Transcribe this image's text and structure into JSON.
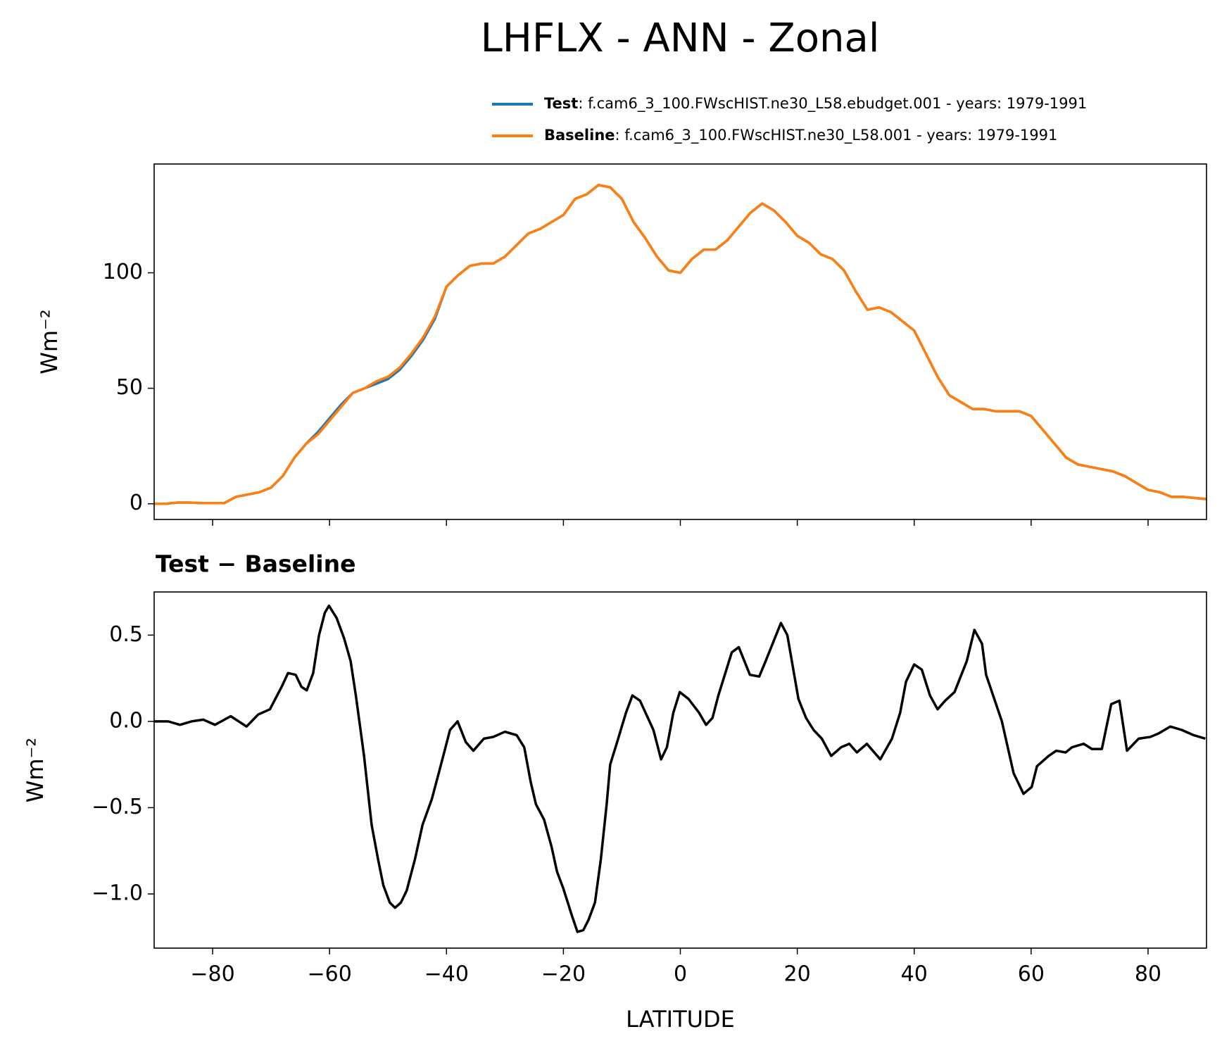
{
  "title": "LHFLX - ANN - Zonal",
  "chart_data": [
    {
      "type": "line",
      "ylabel": "Wm⁻²",
      "xlim": [
        -90,
        90
      ],
      "ylim": [
        -6.8,
        147.1
      ],
      "xticks": [
        -80,
        -60,
        -40,
        -20,
        0,
        20,
        40,
        60,
        80
      ],
      "yticks": [
        0,
        50,
        100
      ],
      "legend": "upper right",
      "x": [
        -90,
        -88,
        -86,
        -84,
        -82,
        -80,
        -78,
        -76,
        -74,
        -72,
        -70,
        -68,
        -66,
        -64,
        -62,
        -60,
        -58,
        -56,
        -54,
        -52,
        -50,
        -48,
        -46,
        -44,
        -42,
        -40,
        -38,
        -36,
        -34,
        -32,
        -30,
        -28,
        -26,
        -24,
        -22,
        -20,
        -18,
        -16,
        -14,
        -12,
        -10,
        -8,
        -6,
        -4,
        -2,
        0,
        2,
        4,
        6,
        8,
        10,
        12,
        14,
        16,
        18,
        20,
        22,
        24,
        26,
        28,
        30,
        32,
        34,
        36,
        38,
        40,
        42,
        44,
        46,
        48,
        50,
        52,
        54,
        56,
        58,
        60,
        62,
        64,
        66,
        68,
        70,
        72,
        74,
        76,
        78,
        80,
        82,
        84,
        86,
        88,
        90
      ],
      "series": [
        {
          "name": "Test",
          "description": ": f.cam6_3_100.FWscHIST.ne30_L58.ebudget.001 - years: 1979-1991",
          "color": "#1f77b4",
          "values": [
            0,
            0,
            0.5,
            0.5,
            0.3,
            0.3,
            0.3,
            3,
            4,
            5,
            7,
            12,
            20,
            26,
            31,
            37,
            43,
            48,
            50,
            52,
            54,
            58,
            64,
            71,
            80,
            94,
            99,
            103,
            104,
            104,
            107,
            112,
            117,
            119,
            122,
            125,
            132,
            134,
            138,
            137,
            132,
            122,
            115,
            107,
            101,
            100,
            106,
            110,
            110,
            114,
            120,
            126,
            130,
            127,
            122,
            116,
            113,
            108,
            106,
            101,
            92,
            84,
            85,
            83,
            79,
            75,
            65,
            55,
            47,
            44,
            41,
            41,
            40,
            40,
            40,
            38,
            32,
            26,
            20,
            17,
            16,
            15,
            14,
            12,
            9,
            6,
            5,
            3,
            3,
            2.5,
            2
          ]
        },
        {
          "name": "Baseline",
          "description": ": f.cam6_3_100.FWscHIST.ne30_L58.001 - years: 1979-1991",
          "color": "#ff7f0e",
          "values": [
            0,
            0,
            0.5,
            0.5,
            0.3,
            0.3,
            0.3,
            3,
            4,
            5,
            7,
            12,
            20,
            26,
            30,
            36,
            42,
            48,
            50,
            53,
            55,
            59,
            65,
            72,
            81,
            94,
            99,
            103,
            104,
            104,
            107,
            112,
            117,
            119,
            122,
            125,
            132,
            134,
            138,
            137,
            132,
            122,
            115,
            107,
            101,
            100,
            106,
            110,
            110,
            114,
            120,
            126,
            130,
            127,
            122,
            116,
            113,
            108,
            106,
            101,
            92,
            84,
            85,
            83,
            79,
            75,
            65,
            55,
            47,
            44,
            41,
            41,
            40,
            40,
            40,
            38,
            32,
            26,
            20,
            17,
            16,
            15,
            14,
            12,
            9,
            6,
            5,
            3,
            3,
            2.5,
            2
          ]
        }
      ]
    },
    {
      "type": "line",
      "title": "Test − Baseline",
      "xlabel": "LATITUDE",
      "ylabel": "Wm⁻²",
      "xlim": [
        -90,
        90
      ],
      "ylim": [
        -1.314,
        0.75
      ],
      "xticks": [
        {
          "value": -80,
          "label": "−80"
        },
        {
          "value": -60,
          "label": "−60"
        },
        {
          "value": -40,
          "label": "−40"
        },
        {
          "value": -20,
          "label": "−20"
        },
        0,
        20,
        40,
        60,
        80
      ],
      "yticks": [
        {
          "value": -1,
          "label": "−1.0"
        },
        {
          "value": -0.5,
          "label": "−0.5"
        },
        {
          "value": 0,
          "label": "0.0"
        },
        0.5
      ],
      "x": [
        -90.0,
        -87.6,
        -85.6,
        -83.6,
        -81.6,
        -79.6,
        -76.9,
        -74.2,
        -72.2,
        -70.2,
        -68.2,
        -67.1,
        -65.8,
        -64.8,
        -63.9,
        -62.8,
        -61.8,
        -60.8,
        -60.1,
        -58.8,
        -57.5,
        -56.4,
        -55.5,
        -54.1,
        -52.8,
        -51.7,
        -50.8,
        -49.7,
        -48.8,
        -47.8,
        -46.8,
        -45.4,
        -44.1,
        -42.5,
        -40.7,
        -39.4,
        -38.1,
        -36.7,
        -35.4,
        -33.6,
        -32.0,
        -30.0,
        -28.0,
        -26.7,
        -25.6,
        -24.7,
        -23.3,
        -22.0,
        -21.1,
        -20.0,
        -18.6,
        -17.6,
        -16.6,
        -15.7,
        -14.6,
        -13.6,
        -12.6,
        -12.0,
        -10.9,
        -9.3,
        -8.2,
        -6.9,
        -4.6,
        -3.3,
        -2.3,
        -1.2,
        -0.1,
        1.4,
        3.2,
        4.4,
        5.5,
        6.5,
        8.8,
        10.0,
        11.9,
        13.5,
        14.6,
        17.2,
        18.3,
        20.2,
        21.5,
        22.8,
        24.2,
        25.8,
        27.5,
        28.9,
        30.2,
        31.9,
        34.2,
        36.2,
        37.6,
        38.6,
        40.0,
        41.3,
        42.7,
        44.0,
        45.3,
        46.9,
        49.0,
        50.3,
        51.6,
        52.3,
        55.0,
        57.0,
        58.7,
        60.1,
        61.0,
        63.0,
        64.3,
        65.9,
        67.0,
        69.0,
        70.4,
        72.1,
        73.7,
        75.1,
        76.4,
        78.4,
        80.4,
        81.8,
        83.8,
        85.8,
        87.8,
        89.8
      ],
      "series": [
        {
          "color": "#000000",
          "values": [
            0,
            0,
            -0.02,
            0,
            0.01,
            -0.02,
            0.03,
            -0.03,
            0.04,
            0.07,
            0.2,
            0.28,
            0.27,
            0.2,
            0.18,
            0.28,
            0.5,
            0.63,
            0.67,
            0.6,
            0.48,
            0.35,
            0.15,
            -0.2,
            -0.6,
            -0.8,
            -0.95,
            -1.05,
            -1.08,
            -1.05,
            -0.98,
            -0.8,
            -0.6,
            -0.45,
            -0.22,
            -0.05,
            0,
            -0.12,
            -0.17,
            -0.1,
            -0.09,
            -0.06,
            -0.08,
            -0.15,
            -0.35,
            -0.48,
            -0.57,
            -0.73,
            -0.87,
            -0.97,
            -1.12,
            -1.22,
            -1.21,
            -1.15,
            -1.05,
            -0.8,
            -0.48,
            -0.25,
            -0.13,
            0.05,
            0.15,
            0.12,
            -0.05,
            -0.22,
            -0.15,
            0.05,
            0.17,
            0.13,
            0.05,
            -0.02,
            0.02,
            0.15,
            0.4,
            0.43,
            0.27,
            0.26,
            0.35,
            0.57,
            0.5,
            0.13,
            0.02,
            -0.05,
            -0.1,
            -0.2,
            -0.15,
            -0.13,
            -0.18,
            -0.13,
            -0.22,
            -0.1,
            0.05,
            0.23,
            0.33,
            0.3,
            0.15,
            0.07,
            0.12,
            0.17,
            0.35,
            0.53,
            0.45,
            0.27,
            0,
            -0.3,
            -0.42,
            -0.38,
            -0.26,
            -0.2,
            -0.17,
            -0.18,
            -0.15,
            -0.13,
            -0.16,
            -0.16,
            0.1,
            0.12,
            -0.17,
            -0.1,
            -0.09,
            -0.07,
            -0.03,
            -0.05,
            -0.08,
            -0.1
          ]
        }
      ]
    }
  ]
}
